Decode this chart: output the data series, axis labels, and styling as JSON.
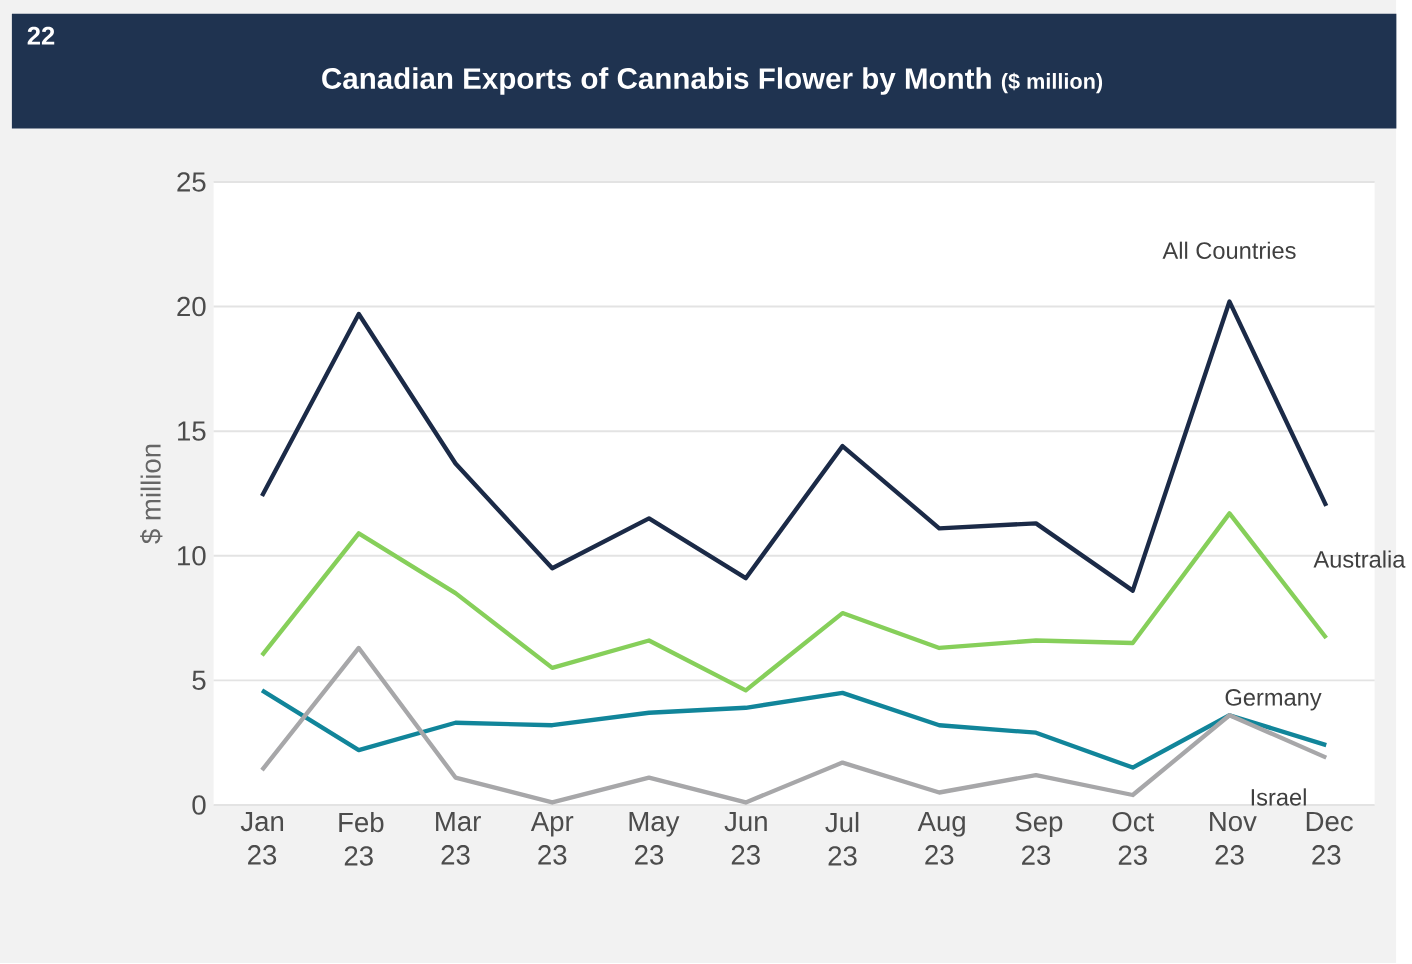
{
  "chart_data": {
    "type": "line",
    "title": "Canadian Exports of Cannabis Flower by Month",
    "subtitle": "($ million)",
    "ylabel": "$ million",
    "annotations": [
      "22"
    ],
    "categories": [
      "Jan 23",
      "Feb 23",
      "Mar 23",
      "Apr 23",
      "May 23",
      "Jun 23",
      "Jul 23",
      "Aug 23",
      "Sep 23",
      "Oct 23",
      "Nov 23",
      "Dec 23"
    ],
    "series": [
      {
        "name": "All Countries",
        "color": "#1b2a47",
        "values": [
          12.4,
          19.7,
          13.7,
          9.5,
          11.5,
          9.1,
          14.4,
          11.1,
          11.3,
          8.6,
          20.2,
          12.0
        ]
      },
      {
        "name": "Australia",
        "color": "#86cf5a",
        "values": [
          6.0,
          10.9,
          8.5,
          5.5,
          6.6,
          4.6,
          7.7,
          6.3,
          6.6,
          6.5,
          11.7,
          6.7
        ]
      },
      {
        "name": "Germany",
        "color": "#11859a",
        "values": [
          4.6,
          2.2,
          3.3,
          3.2,
          3.7,
          3.9,
          4.5,
          3.2,
          2.9,
          1.5,
          3.6,
          2.4
        ]
      },
      {
        "name": "Israel",
        "color": "#a7a7a9",
        "values": [
          1.4,
          6.3,
          1.1,
          0.1,
          1.1,
          0.1,
          1.7,
          0.5,
          1.2,
          0.4,
          3.6,
          1.9
        ]
      }
    ],
    "ylim": [
      0,
      25
    ],
    "yticks": [
      0,
      5,
      10,
      15,
      20,
      25
    ],
    "grid": "y",
    "legend": false,
    "marker": "none",
    "line_style": "solid"
  }
}
